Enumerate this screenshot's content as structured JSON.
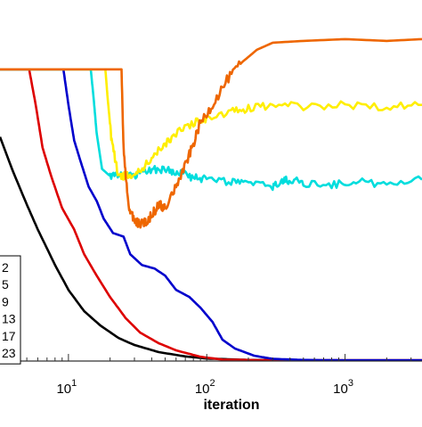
{
  "chart_data": {
    "type": "line",
    "title": "",
    "xlabel": "iteration",
    "ylabel": "",
    "xscale": "log",
    "xlim": [
      3.2,
      3600
    ],
    "ylim": [
      0,
      1
    ],
    "grid": false,
    "legend_placement": "left",
    "x_ticks": [
      {
        "value": 10,
        "base": "10",
        "exp": "1"
      },
      {
        "value": 100,
        "base": "10",
        "exp": "2"
      },
      {
        "value": 1000,
        "base": "10",
        "exp": "3"
      }
    ],
    "series": [
      {
        "name": "2",
        "color": "#000000",
        "points": [
          [
            3.2,
            0.63
          ],
          [
            4,
            0.53
          ],
          [
            5,
            0.44
          ],
          [
            6,
            0.37
          ],
          [
            8,
            0.27
          ],
          [
            10,
            0.2
          ],
          [
            13,
            0.14
          ],
          [
            17,
            0.1
          ],
          [
            23,
            0.065
          ],
          [
            30,
            0.045
          ],
          [
            45,
            0.025
          ],
          [
            70,
            0.013
          ],
          [
            100,
            0.007
          ],
          [
            200,
            0.003
          ],
          [
            500,
            0.002
          ],
          [
            3600,
            0.002
          ]
        ]
      },
      {
        "name": "5",
        "color": "#dd0000",
        "points": [
          [
            3.2,
            0.82
          ],
          [
            5.2,
            0.82
          ],
          [
            5.8,
            0.72
          ],
          [
            6.5,
            0.6
          ],
          [
            7.5,
            0.52
          ],
          [
            9,
            0.43
          ],
          [
            11,
            0.37
          ],
          [
            13,
            0.3
          ],
          [
            16,
            0.24
          ],
          [
            20,
            0.18
          ],
          [
            26,
            0.12
          ],
          [
            33,
            0.08
          ],
          [
            45,
            0.05
          ],
          [
            60,
            0.03
          ],
          [
            90,
            0.012
          ],
          [
            130,
            0.004
          ],
          [
            300,
            0.002
          ],
          [
            3600,
            0.002
          ]
        ]
      },
      {
        "name": "9",
        "color": "#0000cc",
        "points": [
          [
            3.2,
            0.82
          ],
          [
            9.2,
            0.82
          ],
          [
            10,
            0.72
          ],
          [
            11,
            0.62
          ],
          [
            12.5,
            0.55
          ],
          [
            14,
            0.49
          ],
          [
            16,
            0.45
          ],
          [
            18,
            0.4
          ],
          [
            21,
            0.36
          ],
          [
            25,
            0.35
          ],
          [
            28,
            0.3
          ],
          [
            34,
            0.27
          ],
          [
            42,
            0.26
          ],
          [
            50,
            0.24
          ],
          [
            60,
            0.2
          ],
          [
            75,
            0.18
          ],
          [
            90,
            0.15
          ],
          [
            110,
            0.11
          ],
          [
            130,
            0.06
          ],
          [
            160,
            0.035
          ],
          [
            220,
            0.015
          ],
          [
            300,
            0.006
          ],
          [
            500,
            0.003
          ],
          [
            1000,
            0.002
          ],
          [
            3600,
            0.002
          ]
        ]
      },
      {
        "name": "13",
        "color": "#00dddd",
        "noise": 0.011,
        "points": [
          [
            3.2,
            0.82
          ],
          [
            14.5,
            0.82
          ],
          [
            15.2,
            0.74
          ],
          [
            16,
            0.64
          ],
          [
            17.5,
            0.54
          ],
          [
            20,
            0.52
          ],
          [
            24,
            0.52
          ],
          [
            30,
            0.52
          ],
          [
            36,
            0.535
          ],
          [
            45,
            0.54
          ],
          [
            55,
            0.535
          ],
          [
            65,
            0.53
          ],
          [
            80,
            0.515
          ],
          [
            100,
            0.51
          ],
          [
            150,
            0.505
          ],
          [
            200,
            0.5
          ],
          [
            300,
            0.49
          ],
          [
            350,
            0.505
          ],
          [
            400,
            0.51
          ],
          [
            500,
            0.5
          ],
          [
            800,
            0.495
          ],
          [
            1200,
            0.505
          ],
          [
            2000,
            0.495
          ],
          [
            3600,
            0.51
          ]
        ]
      },
      {
        "name": "17",
        "color": "#ffee00",
        "noise": 0.011,
        "points": [
          [
            3.2,
            0.82
          ],
          [
            18.5,
            0.82
          ],
          [
            19.2,
            0.74
          ],
          [
            20.5,
            0.62
          ],
          [
            23,
            0.52
          ],
          [
            27,
            0.52
          ],
          [
            32,
            0.53
          ],
          [
            40,
            0.57
          ],
          [
            50,
            0.61
          ],
          [
            60,
            0.64
          ],
          [
            80,
            0.67
          ],
          [
            100,
            0.68
          ],
          [
            150,
            0.7
          ],
          [
            200,
            0.71
          ],
          [
            300,
            0.72
          ],
          [
            500,
            0.715
          ],
          [
            1000,
            0.72
          ],
          [
            2000,
            0.715
          ],
          [
            3600,
            0.72
          ]
        ]
      },
      {
        "name": "23",
        "color": "#ee6600",
        "noise": 0.013,
        "points": [
          [
            3.2,
            0.82
          ],
          [
            24.2,
            0.82
          ],
          [
            25,
            0.6
          ],
          [
            27,
            0.44
          ],
          [
            29.5,
            0.4
          ],
          [
            32,
            0.385
          ],
          [
            36,
            0.39
          ],
          [
            40,
            0.41
          ],
          [
            45,
            0.44
          ],
          [
            50,
            0.43
          ],
          [
            60,
            0.49
          ],
          [
            70,
            0.55
          ],
          [
            80,
            0.61
          ],
          [
            90,
            0.67
          ],
          [
            110,
            0.72
          ],
          [
            140,
            0.79
          ],
          [
            180,
            0.84
          ],
          [
            230,
            0.875
          ],
          [
            300,
            0.895
          ],
          [
            500,
            0.9
          ],
          [
            1000,
            0.905
          ],
          [
            2000,
            0.9
          ],
          [
            3600,
            0.905
          ]
        ]
      }
    ]
  }
}
